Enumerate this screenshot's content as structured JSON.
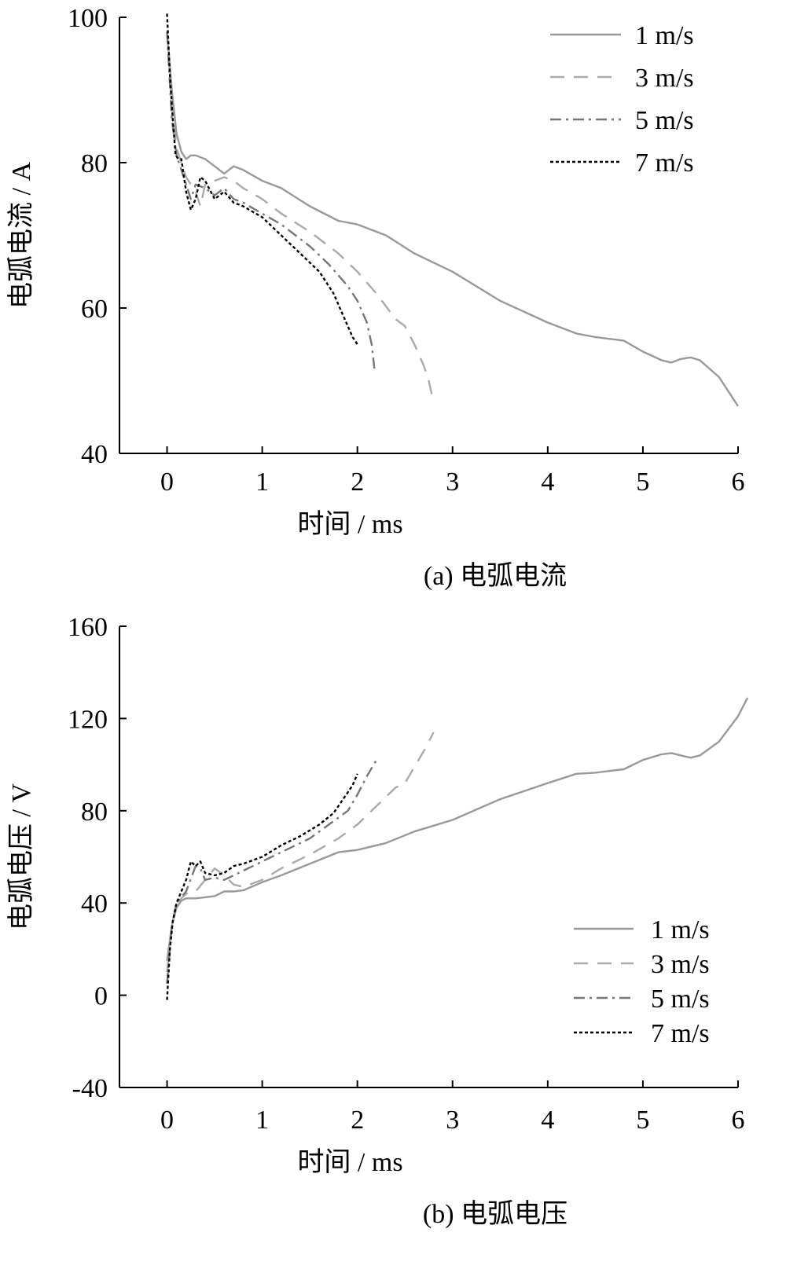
{
  "chart_data": [
    {
      "type": "line",
      "caption": "(a)  电弧电流",
      "xlabel": "时间 / ms",
      "ylabel": "电弧电流 / A",
      "xlim": [
        -0.5,
        6
      ],
      "ylim": [
        40,
        100
      ],
      "xticks": [
        0,
        1,
        2,
        3,
        4,
        5,
        6
      ],
      "yticks": [
        40,
        60,
        80,
        100
      ],
      "grid": false,
      "legend_position": "top-right",
      "series": [
        {
          "name": "1 m/s",
          "color": "#999999",
          "dash": "solid",
          "x": [
            0,
            0.05,
            0.1,
            0.15,
            0.2,
            0.25,
            0.3,
            0.4,
            0.5,
            0.6,
            0.7,
            0.8,
            1.0,
            1.2,
            1.5,
            1.8,
            2.0,
            2.3,
            2.6,
            3.0,
            3.5,
            4.0,
            4.3,
            4.5,
            4.8,
            5.0,
            5.2,
            5.3,
            5.4,
            5.5,
            5.6,
            5.8,
            6.0
          ],
          "y": [
            98,
            90,
            84,
            81.5,
            80.5,
            81,
            81,
            80.5,
            79.5,
            78.5,
            79.5,
            79,
            77.5,
            76.5,
            74,
            72,
            71.5,
            70,
            67.5,
            65,
            61,
            58,
            56.5,
            56,
            55.5,
            54,
            52.8,
            52.5,
            53,
            53.2,
            52.8,
            50.5,
            46.5
          ]
        },
        {
          "name": "3 m/s",
          "color": "#aaaaaa",
          "dash": "long-dash",
          "x": [
            0,
            0.05,
            0.1,
            0.2,
            0.3,
            0.35,
            0.4,
            0.5,
            0.6,
            0.7,
            0.8,
            1.0,
            1.2,
            1.5,
            1.8,
            2.0,
            2.2,
            2.4,
            2.5,
            2.6,
            2.7,
            2.75,
            2.8
          ],
          "y": [
            98,
            88,
            82,
            78,
            76,
            74,
            77,
            77.5,
            78,
            77.5,
            76.5,
            75,
            73,
            70.5,
            67.5,
            65,
            62,
            58.5,
            57.5,
            55,
            52,
            50,
            47
          ]
        },
        {
          "name": "5 m/s",
          "color": "#777777",
          "dash": "dash-dot",
          "x": [
            0,
            0.05,
            0.1,
            0.2,
            0.25,
            0.3,
            0.4,
            0.5,
            0.6,
            0.7,
            0.8,
            1.0,
            1.2,
            1.5,
            1.7,
            1.9,
            2.0,
            2.1,
            2.15,
            2.18
          ],
          "y": [
            98,
            86,
            81,
            77,
            75,
            77,
            76.5,
            75.5,
            76.5,
            75,
            74.5,
            73,
            71.5,
            68.5,
            66,
            63,
            61,
            58,
            55,
            51.5
          ]
        },
        {
          "name": "7 m/s",
          "color": "#000000",
          "dash": "dotted",
          "x": [
            0,
            0.03,
            0.06,
            0.09,
            0.12,
            0.15,
            0.2,
            0.25,
            0.3,
            0.35,
            0.4,
            0.5,
            0.6,
            0.7,
            0.8,
            1.0,
            1.2,
            1.4,
            1.6,
            1.75,
            1.85,
            1.95,
            2.0
          ],
          "y": [
            100.5,
            92,
            86,
            81,
            80.5,
            80.5,
            76,
            73.5,
            75,
            78,
            77.5,
            75,
            76,
            74.5,
            74,
            72.5,
            70,
            67.5,
            65,
            62,
            59,
            56,
            55
          ]
        }
      ]
    },
    {
      "type": "line",
      "caption": "(b)  电弧电压",
      "xlabel": "时间 / ms",
      "ylabel": "电弧电压 / V",
      "xlim": [
        -0.5,
        6
      ],
      "ylim": [
        -40,
        160
      ],
      "xticks": [
        0,
        1,
        2,
        3,
        4,
        5,
        6
      ],
      "yticks": [
        -40,
        0,
        40,
        80,
        120,
        160
      ],
      "grid": false,
      "legend_position": "bottom-right",
      "series": [
        {
          "name": "1 m/s",
          "color": "#999999",
          "dash": "solid",
          "x": [
            0,
            0.05,
            0.1,
            0.15,
            0.2,
            0.3,
            0.4,
            0.5,
            0.6,
            0.7,
            0.8,
            1.0,
            1.2,
            1.5,
            1.8,
            2.0,
            2.3,
            2.6,
            3.0,
            3.5,
            4.0,
            4.3,
            4.5,
            4.8,
            5.0,
            5.2,
            5.3,
            5.4,
            5.5,
            5.6,
            5.8,
            6.0,
            6.1
          ],
          "y": [
            15,
            30,
            38,
            41,
            42,
            42,
            42.5,
            43,
            45,
            45,
            45.5,
            49,
            52,
            57,
            62,
            63,
            66,
            71,
            76,
            85,
            92,
            96,
            96.5,
            98,
            102,
            104.5,
            105,
            104,
            103,
            104,
            110,
            121,
            129
          ]
        },
        {
          "name": "3 m/s",
          "color": "#aaaaaa",
          "dash": "long-dash",
          "x": [
            0,
            0.05,
            0.1,
            0.2,
            0.3,
            0.4,
            0.5,
            0.6,
            0.7,
            0.8,
            1.0,
            1.2,
            1.5,
            1.8,
            2.0,
            2.2,
            2.4,
            2.5,
            2.6,
            2.7,
            2.8
          ],
          "y": [
            10,
            30,
            40,
            44,
            45,
            50,
            55,
            52,
            48,
            47,
            50,
            55,
            61,
            68,
            74,
            82,
            90,
            92,
            99,
            106,
            114
          ]
        },
        {
          "name": "5 m/s",
          "color": "#777777",
          "dash": "dash-dot",
          "x": [
            0,
            0.05,
            0.1,
            0.2,
            0.3,
            0.35,
            0.4,
            0.5,
            0.6,
            0.7,
            0.8,
            1.0,
            1.2,
            1.5,
            1.7,
            1.9,
            2.0,
            2.1,
            2.2
          ],
          "y": [
            5,
            30,
            40,
            45,
            56,
            55,
            50,
            51,
            50,
            52,
            54,
            58,
            62,
            68,
            74,
            80,
            87,
            95,
            102
          ]
        },
        {
          "name": "7 m/s",
          "color": "#000000",
          "dash": "dotted",
          "x": [
            0,
            0.03,
            0.06,
            0.1,
            0.15,
            0.2,
            0.25,
            0.3,
            0.35,
            0.4,
            0.5,
            0.6,
            0.7,
            0.8,
            1.0,
            1.2,
            1.4,
            1.6,
            1.75,
            1.85,
            1.95,
            2.0
          ],
          "y": [
            -2,
            20,
            32,
            40,
            45,
            50,
            58,
            56,
            58,
            53,
            52,
            53,
            56,
            57,
            60,
            65,
            69,
            74,
            79,
            85,
            91,
            96
          ]
        }
      ]
    }
  ]
}
